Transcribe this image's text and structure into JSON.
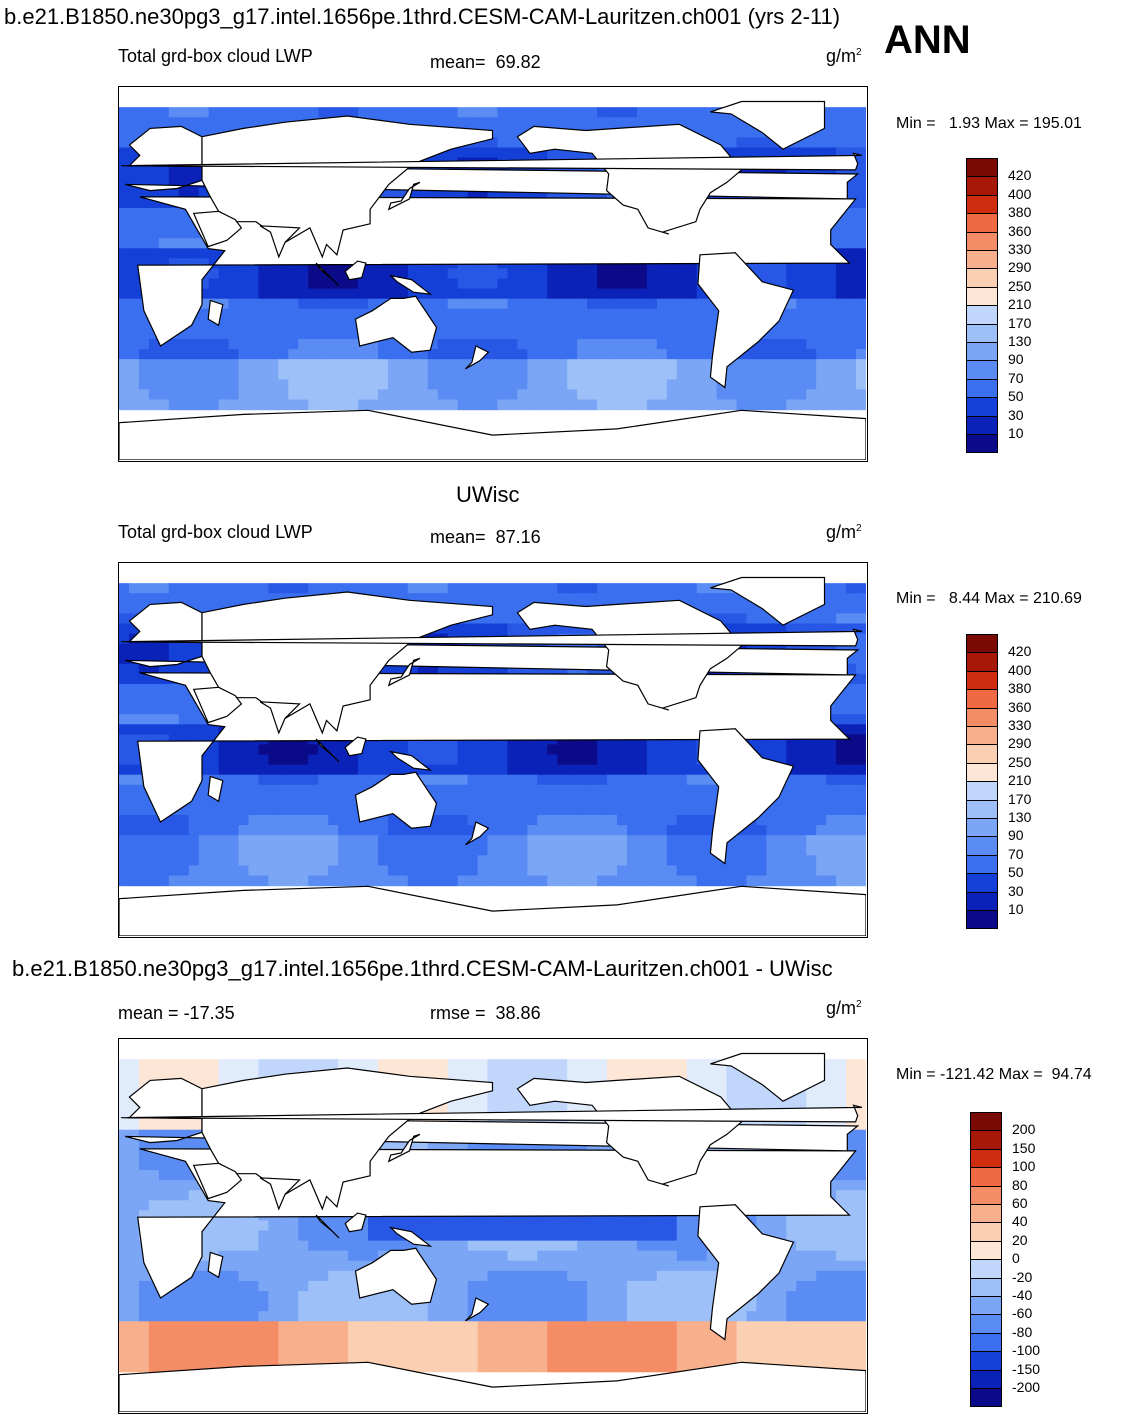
{
  "page": {
    "top_title": "b.e21.B1850.ne30pg3_g17.intel.1656pe.1thrd.CESM-CAM-Lauritzen.ch001 (yrs 2-11)",
    "season": "ANN",
    "mid_title": "UWisc",
    "diff_title": "b.e21.B1850.ne30pg3_g17.intel.1656pe.1thrd.CESM-CAM-Lauritzen.ch001 - UWisc"
  },
  "colors": {
    "ramp_abs": [
      "#0b0b8a",
      "#0a22b8",
      "#1440d8",
      "#2857e6",
      "#3a6ff0",
      "#5a8cf4",
      "#7ba6f6",
      "#9ec0f8",
      "#c0d6fa",
      "#e0ecfc",
      "#fde6d6",
      "#fbcfb2",
      "#f8b08c",
      "#f48c66",
      "#ef6a42",
      "#e64a24",
      "#cf2d10",
      "#a81808",
      "#7a0a04"
    ],
    "ramp_diff": [
      "#0b0b8a",
      "#0a22b8",
      "#1440d8",
      "#2857e6",
      "#3a6ff0",
      "#5a8cf4",
      "#7ba6f6",
      "#9ec0f8",
      "#c0d6fa",
      "#e0ecfc",
      "#fde6d6",
      "#fbcfb2",
      "#f8b08c",
      "#f48c66",
      "#ef6a42",
      "#e64a24",
      "#cf2d10",
      "#a81808",
      "#7a0a04"
    ],
    "land": "#ffffff",
    "coast": "#000000"
  },
  "chart_data": [
    {
      "type": "heatmap",
      "panel": "model",
      "title": "Total grd-box cloud LWP",
      "mean_label": "mean=",
      "mean": "69.82",
      "units_label": "g/m",
      "units_sup": "2",
      "min_label": "Min =",
      "min": "1.93",
      "max_label": "Max =",
      "max": "195.01",
      "levels": [
        "420",
        "400",
        "380",
        "360",
        "330",
        "290",
        "250",
        "210",
        "170",
        "130",
        "90",
        "70",
        "50",
        "30",
        "10"
      ],
      "field_bias": 0
    },
    {
      "type": "heatmap",
      "panel": "obs",
      "title": "Total grd-box cloud LWP",
      "mean_label": "mean=",
      "mean": "87.16",
      "units_label": "g/m",
      "units_sup": "2",
      "min_label": "Min =",
      "min": "8.44",
      "max_label": "Max =",
      "max": "210.69",
      "levels": [
        "420",
        "400",
        "380",
        "360",
        "330",
        "290",
        "250",
        "210",
        "170",
        "130",
        "90",
        "70",
        "50",
        "30",
        "10"
      ],
      "field_bias": 1
    },
    {
      "type": "heatmap",
      "panel": "diff",
      "mean_label": "mean =",
      "mean": "-17.35",
      "rmse_label": "rmse =",
      "rmse": "38.86",
      "units_label": "g/m",
      "units_sup": "2",
      "min_label": "Min =",
      "min": "-121.42",
      "max_label": "Max =",
      "max": "94.74",
      "levels": [
        "200",
        "150",
        "100",
        "80",
        "60",
        "40",
        "20",
        "0",
        "-20",
        "-40",
        "-60",
        "-80",
        "-100",
        "-150",
        "-200"
      ],
      "field_bias": 2
    }
  ]
}
